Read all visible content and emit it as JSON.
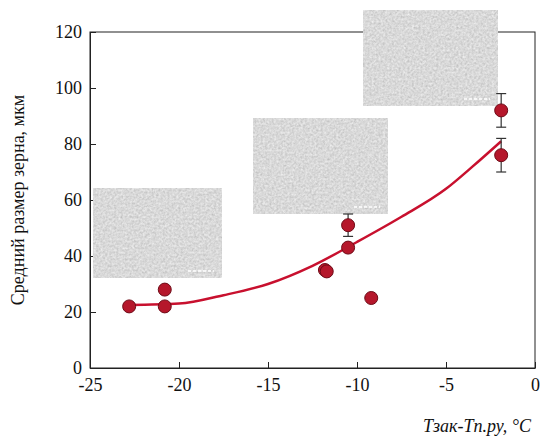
{
  "chart_data": {
    "type": "scatter",
    "xlabel": "Tзак-Tп.ру, °C",
    "ylabel": "Средний размер зерна, мкм",
    "xlim": [
      -25,
      0
    ],
    "ylim": [
      0,
      120
    ],
    "xticks": [
      -25,
      -20,
      -15,
      -10,
      -5,
      0
    ],
    "yticks": [
      0,
      20,
      40,
      60,
      80,
      100,
      120
    ],
    "grid": false,
    "series": [
      {
        "type": "scatter",
        "marker": "circle",
        "color": "#b5172b",
        "x": [
          -22.8,
          -20.8,
          -20.8,
          -11.8,
          -11.7,
          -10.5,
          -10.5,
          -9.2,
          -1.9,
          -1.9
        ],
        "values": [
          22,
          28,
          22,
          35,
          34.5,
          51,
          43,
          25,
          92,
          76
        ],
        "errors": [
          null,
          null,
          null,
          null,
          null,
          4,
          null,
          null,
          6,
          6
        ]
      },
      {
        "type": "line",
        "line_style": "solid",
        "color": "#c8102e",
        "x": [
          -22.8,
          -20,
          -17.5,
          -15,
          -12.5,
          -10,
          -7.5,
          -5,
          -3.5,
          -1.9
        ],
        "values": [
          22.5,
          23,
          26,
          30,
          36.5,
          45,
          54,
          64,
          72,
          81
        ]
      }
    ]
  }
}
